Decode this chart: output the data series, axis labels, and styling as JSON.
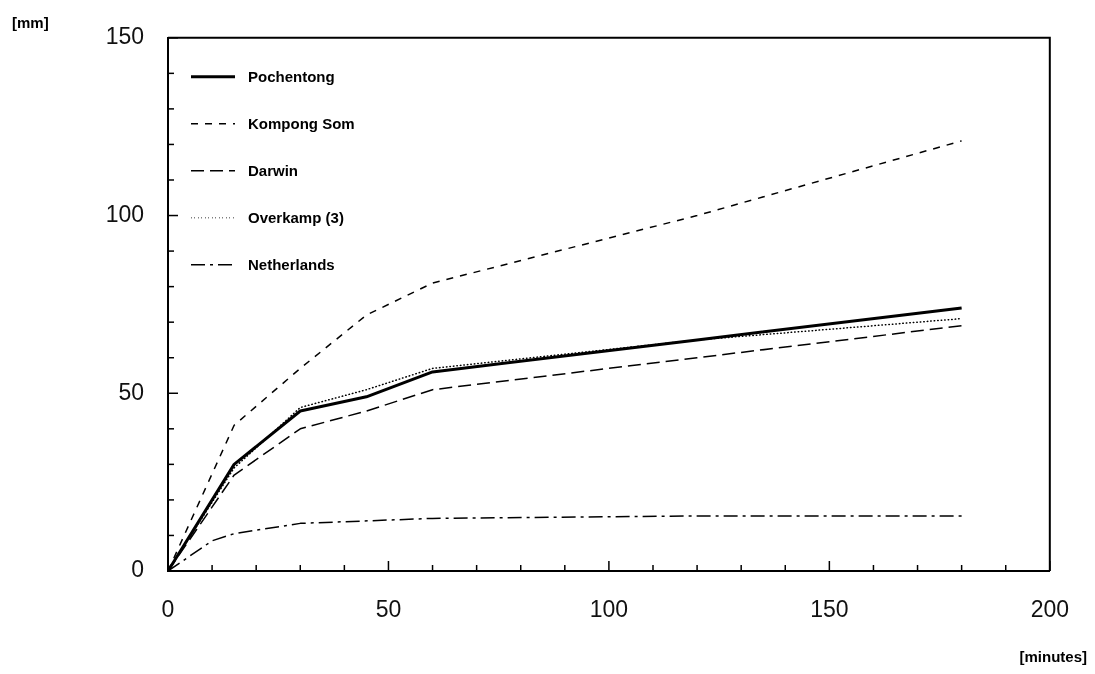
{
  "chart_data": {
    "type": "line",
    "xlabel": "[minutes]",
    "ylabel": "[mm]",
    "legend": "top left",
    "marker": "none",
    "xlim": [
      0,
      200
    ],
    "ylim": [
      0,
      150
    ],
    "xticks": [
      0,
      {
        "value": 10,
        "label": null
      },
      {
        "value": 20,
        "label": null
      },
      {
        "value": 30,
        "label": null
      },
      {
        "value": 40,
        "label": null
      },
      50,
      {
        "value": 60,
        "label": null
      },
      {
        "value": 70,
        "label": null
      },
      {
        "value": 80,
        "label": null
      },
      {
        "value": 90,
        "label": null
      },
      100,
      {
        "value": 110,
        "label": null
      },
      {
        "value": 120,
        "label": null
      },
      {
        "value": 130,
        "label": null
      },
      {
        "value": 140,
        "label": null
      },
      150,
      {
        "value": 160,
        "label": null
      },
      {
        "value": 170,
        "label": null
      },
      {
        "value": 180,
        "label": null
      },
      {
        "value": 190,
        "label": null
      },
      200
    ],
    "yticks": [
      0,
      {
        "value": 10,
        "label": null
      },
      {
        "value": 20,
        "label": null
      },
      {
        "value": 30,
        "label": null
      },
      {
        "value": 40,
        "label": null
      },
      50,
      {
        "value": 60,
        "label": null
      },
      {
        "value": 70,
        "label": null
      },
      {
        "value": 80,
        "label": null
      },
      {
        "value": 90,
        "label": null
      },
      100,
      {
        "value": 110,
        "label": null
      },
      {
        "value": 120,
        "label": null
      },
      {
        "value": 130,
        "label": null
      },
      {
        "value": 140,
        "label": null
      },
      150
    ],
    "x": [
      0,
      15,
      30,
      45,
      60,
      120,
      180
    ],
    "series": [
      {
        "name": "Pochentong",
        "color": "#000000",
        "line_style": "solid",
        "values": [
          0,
          30,
          45,
          49,
          56,
          65,
          74
        ]
      },
      {
        "name": "Kompong Som",
        "color": "#000000",
        "line_style": "dashed",
        "values": [
          0,
          41,
          57,
          72,
          81,
          100,
          121
        ]
      },
      {
        "name": "Darwin",
        "color": "#000000",
        "line_style": "longdashed",
        "values": [
          0,
          27,
          40,
          45,
          51,
          60,
          69
        ]
      },
      {
        "name": "Overkamp (3)",
        "color": "#000000",
        "line_style": "dotted",
        "values": [
          0,
          29,
          46,
          51,
          57,
          65,
          71
        ]
      },
      {
        "name": "Netherlands",
        "color": "#000000",
        "line_style": "dashdot",
        "x": [
          0,
          10,
          15,
          30,
          60,
          120,
          180
        ],
        "values": [
          0,
          8.5,
          10.5,
          13.4,
          14.8,
          15.5,
          15.5
        ]
      }
    ]
  }
}
